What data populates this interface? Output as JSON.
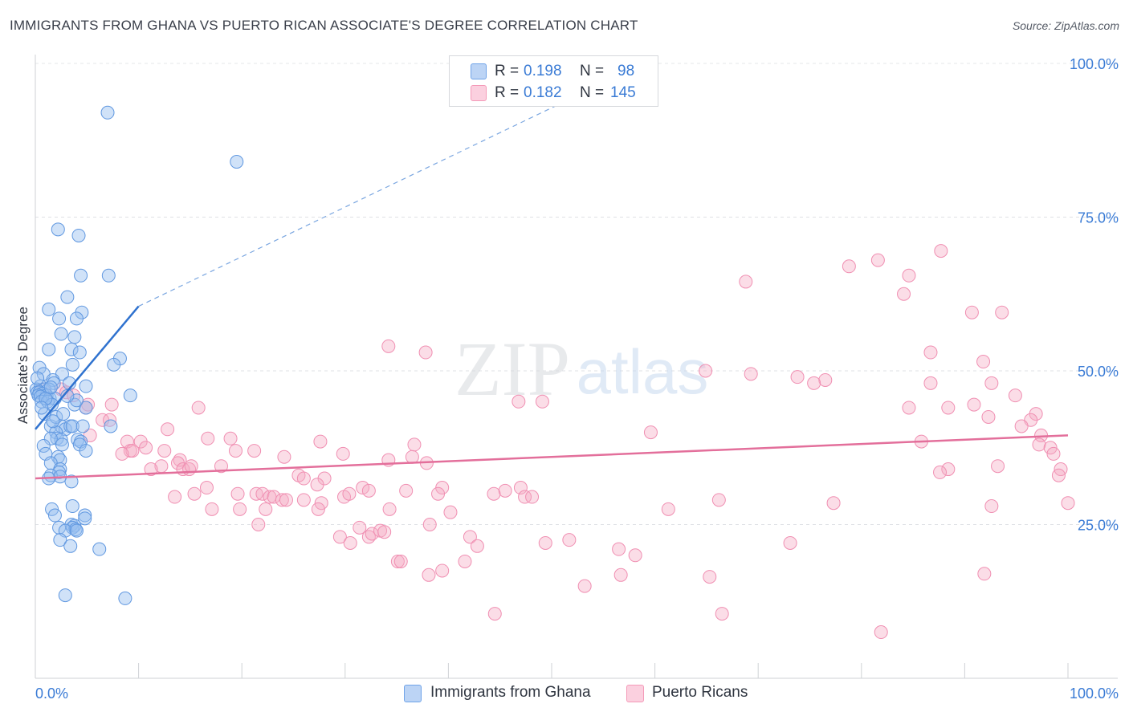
{
  "title": "IMMIGRANTS FROM GHANA VS PUERTO RICAN ASSOCIATE'S DEGREE CORRELATION CHART",
  "source": "Source: ZipAtlas.com",
  "watermark": {
    "zip": "ZIP",
    "atlas": "atlas"
  },
  "legend": {
    "r_label": "R =",
    "n_label": "N =",
    "series": [
      {
        "name": "Immigrants from Ghana",
        "r": "0.198",
        "n": "98",
        "color": "#6fa3e8"
      },
      {
        "name": "Puerto Ricans",
        "r": "0.182",
        "n": "145",
        "color": "#f49ab8"
      }
    ]
  },
  "chart_data": {
    "type": "scatter",
    "title": "IMMIGRANTS FROM GHANA VS PUERTO RICAN ASSOCIATE'S DEGREE CORRELATION CHART",
    "xlabel": "",
    "ylabel": "Associate's Degree",
    "xlim": [
      0,
      100
    ],
    "ylim": [
      0,
      100
    ],
    "x_tick_labels": [
      "0.0%",
      "100.0%"
    ],
    "y_ticks": [
      25,
      50,
      75,
      100
    ],
    "y_tick_labels": [
      "25.0%",
      "50.0%",
      "75.0%",
      "100.0%"
    ],
    "grid": true,
    "series": [
      {
        "name": "Immigrants from Ghana",
        "color": "#6fa3e8",
        "line_color": "#2f72cf",
        "trend": {
          "x0": 0,
          "y0": 40.5,
          "x1": 10,
          "y1": 60.5,
          "dashed_to_x": 54,
          "dashed_to_y": 96
        },
        "points": [
          [
            7,
            92
          ],
          [
            19.5,
            84
          ],
          [
            2.2,
            73
          ],
          [
            4.2,
            72
          ],
          [
            4.4,
            65.5
          ],
          [
            7.1,
            65.5
          ],
          [
            3.1,
            62
          ],
          [
            1.3,
            60
          ],
          [
            4.5,
            59.5
          ],
          [
            4,
            58.5
          ],
          [
            2.3,
            58.5
          ],
          [
            2.5,
            56
          ],
          [
            3.8,
            55.5
          ],
          [
            1.3,
            53.5
          ],
          [
            3.5,
            53.5
          ],
          [
            4.3,
            53
          ],
          [
            8.2,
            52
          ],
          [
            7.6,
            51
          ],
          [
            3.6,
            51
          ],
          [
            0.4,
            50.5
          ],
          [
            0.8,
            49.5
          ],
          [
            2.6,
            49.5
          ],
          [
            1.7,
            48.5
          ],
          [
            1.8,
            48
          ],
          [
            3.3,
            48
          ],
          [
            4.9,
            47.5
          ],
          [
            0.5,
            47.5
          ],
          [
            0.9,
            47
          ],
          [
            1.3,
            47
          ],
          [
            0.1,
            47
          ],
          [
            0.2,
            46.5
          ],
          [
            0.4,
            46.5
          ],
          [
            0.7,
            46.3
          ],
          [
            1.1,
            46
          ],
          [
            0.3,
            46
          ],
          [
            0.5,
            45.8
          ],
          [
            1.4,
            45.5
          ],
          [
            1.9,
            45.5
          ],
          [
            9.2,
            46
          ],
          [
            0.6,
            45
          ],
          [
            1.2,
            45
          ],
          [
            1.6,
            44.5
          ],
          [
            3.8,
            44.5
          ],
          [
            4.9,
            44
          ],
          [
            0.9,
            43
          ],
          [
            1.5,
            41
          ],
          [
            2.5,
            41
          ],
          [
            2.9,
            40.5
          ],
          [
            3.4,
            41
          ],
          [
            3.6,
            41
          ],
          [
            4.6,
            41
          ],
          [
            7.3,
            41
          ],
          [
            2,
            40
          ],
          [
            2.1,
            39
          ],
          [
            2.5,
            38.8
          ],
          [
            1.5,
            39
          ],
          [
            4.1,
            38.8
          ],
          [
            4.4,
            38.5
          ],
          [
            4.3,
            38
          ],
          [
            2.6,
            38
          ],
          [
            0.8,
            37.8
          ],
          [
            4.9,
            37
          ],
          [
            1,
            36.5
          ],
          [
            2.2,
            36
          ],
          [
            2.4,
            35.5
          ],
          [
            1.5,
            35
          ],
          [
            2.4,
            34
          ],
          [
            2.3,
            33.5
          ],
          [
            1.5,
            33
          ],
          [
            2.4,
            32.8
          ],
          [
            1.3,
            32.5
          ],
          [
            3.5,
            32
          ],
          [
            1.6,
            27.5
          ],
          [
            3.6,
            28
          ],
          [
            1.9,
            26.5
          ],
          [
            4.8,
            26.5
          ],
          [
            4.8,
            26
          ],
          [
            3.5,
            25
          ],
          [
            3.8,
            24.8
          ],
          [
            2.3,
            24.5
          ],
          [
            3.6,
            24.5
          ],
          [
            3.9,
            24.2
          ],
          [
            2.9,
            24
          ],
          [
            4,
            24
          ],
          [
            2.4,
            22.5
          ],
          [
            3.4,
            21.5
          ],
          [
            6.2,
            21
          ],
          [
            2.9,
            13.5
          ],
          [
            8.7,
            13
          ],
          [
            1,
            45.5
          ],
          [
            1.5,
            47.3
          ],
          [
            0.2,
            48.8
          ],
          [
            2,
            42.5
          ],
          [
            1.7,
            41.8
          ],
          [
            0.6,
            44
          ],
          [
            2.7,
            43
          ],
          [
            4,
            45.2
          ],
          [
            3.1,
            45.9
          ]
        ]
      },
      {
        "name": "Puerto Ricans",
        "color": "#f49ab8",
        "line_color": "#e36f9b",
        "trend": {
          "x0": 0,
          "y0": 32.5,
          "x1": 100,
          "y1": 39.5
        },
        "points": [
          [
            87.7,
            69.5
          ],
          [
            81.6,
            68
          ],
          [
            78.8,
            67
          ],
          [
            84.6,
            65.5
          ],
          [
            68.8,
            64.5
          ],
          [
            84.1,
            62.5
          ],
          [
            93.6,
            59.5
          ],
          [
            90.7,
            59.5
          ],
          [
            34.2,
            54
          ],
          [
            37.8,
            53
          ],
          [
            86.7,
            53
          ],
          [
            91.8,
            51.5
          ],
          [
            64.9,
            50
          ],
          [
            69.3,
            49.5
          ],
          [
            73.8,
            49
          ],
          [
            76.5,
            48.5
          ],
          [
            75.4,
            48
          ],
          [
            86.7,
            48
          ],
          [
            92.6,
            48
          ],
          [
            0.8,
            47
          ],
          [
            2.5,
            47
          ],
          [
            3,
            46.5
          ],
          [
            3.7,
            46
          ],
          [
            94.9,
            46
          ],
          [
            46.8,
            45
          ],
          [
            49.1,
            45
          ],
          [
            84.6,
            44
          ],
          [
            90.9,
            44.5
          ],
          [
            88.4,
            44
          ],
          [
            5.1,
            44.5
          ],
          [
            7.4,
            44.5
          ],
          [
            4.9,
            44
          ],
          [
            15.8,
            44
          ],
          [
            92.3,
            42.5
          ],
          [
            96.9,
            43
          ],
          [
            6.5,
            42
          ],
          [
            7.2,
            42
          ],
          [
            96.4,
            42
          ],
          [
            95.5,
            41
          ],
          [
            12.8,
            40.5
          ],
          [
            59.6,
            40
          ],
          [
            5.3,
            39.5
          ],
          [
            97.4,
            39.5
          ],
          [
            16.7,
            39
          ],
          [
            18.9,
            39
          ],
          [
            8.9,
            38.5
          ],
          [
            10.2,
            38.5
          ],
          [
            27.6,
            38.5
          ],
          [
            36.7,
            38
          ],
          [
            85.8,
            38.5
          ],
          [
            97.2,
            38
          ],
          [
            98.3,
            37.5
          ],
          [
            10.7,
            37.5
          ],
          [
            9.2,
            37
          ],
          [
            9.4,
            37
          ],
          [
            12.5,
            37
          ],
          [
            8.4,
            36.5
          ],
          [
            19.4,
            37
          ],
          [
            21.2,
            37
          ],
          [
            29.8,
            36.5
          ],
          [
            24.1,
            36
          ],
          [
            34.2,
            35.5
          ],
          [
            98.6,
            36.5
          ],
          [
            37.9,
            35
          ],
          [
            14,
            35.5
          ],
          [
            13.8,
            35
          ],
          [
            12.2,
            34.5
          ],
          [
            11.2,
            34
          ],
          [
            14.3,
            34
          ],
          [
            14.9,
            34
          ],
          [
            15.1,
            34.5
          ],
          [
            18,
            34.5
          ],
          [
            99.3,
            34
          ],
          [
            93.2,
            34.5
          ],
          [
            88.4,
            34
          ],
          [
            87.6,
            33.5
          ],
          [
            99.1,
            33
          ],
          [
            25.5,
            33
          ],
          [
            26,
            32.5
          ],
          [
            28,
            32.5
          ],
          [
            27.3,
            31.5
          ],
          [
            31.7,
            31
          ],
          [
            32.3,
            30.5
          ],
          [
            16.6,
            31
          ],
          [
            39.4,
            31
          ],
          [
            45.5,
            30.5
          ],
          [
            47,
            31
          ],
          [
            47.4,
            29.5
          ],
          [
            48.1,
            29.5
          ],
          [
            35.9,
            30.5
          ],
          [
            13.5,
            29.5
          ],
          [
            15.4,
            30
          ],
          [
            19.6,
            30
          ],
          [
            21.4,
            30
          ],
          [
            22,
            30
          ],
          [
            22.7,
            29.5
          ],
          [
            23.1,
            29.5
          ],
          [
            23.9,
            29
          ],
          [
            24.3,
            29
          ],
          [
            26,
            29
          ],
          [
            27.7,
            28.5
          ],
          [
            29.9,
            29.5
          ],
          [
            30.4,
            30
          ],
          [
            39,
            30
          ],
          [
            44.4,
            30
          ],
          [
            66.2,
            29
          ],
          [
            92.6,
            28
          ],
          [
            77.3,
            28.5
          ],
          [
            100,
            28.5
          ],
          [
            22.3,
            27.5
          ],
          [
            17.1,
            27.5
          ],
          [
            19.8,
            27.5
          ],
          [
            27.4,
            27.5
          ],
          [
            34.3,
            27.5
          ],
          [
            40.2,
            27
          ],
          [
            61.3,
            27.5
          ],
          [
            21.6,
            25
          ],
          [
            38.2,
            25
          ],
          [
            31.4,
            24.5
          ],
          [
            32.3,
            23
          ],
          [
            32.6,
            23.5
          ],
          [
            33.4,
            24
          ],
          [
            33.8,
            23.8
          ],
          [
            29.5,
            23
          ],
          [
            42.1,
            23
          ],
          [
            30.5,
            22
          ],
          [
            51.7,
            22.5
          ],
          [
            49.4,
            22
          ],
          [
            73.1,
            22
          ],
          [
            42.8,
            21.5
          ],
          [
            56.5,
            21
          ],
          [
            58.1,
            20
          ],
          [
            41.6,
            19
          ],
          [
            35.1,
            19
          ],
          [
            35.4,
            19
          ],
          [
            39.4,
            17.5
          ],
          [
            38.1,
            16.8
          ],
          [
            56.7,
            16.8
          ],
          [
            65.3,
            16.5
          ],
          [
            91.9,
            17
          ],
          [
            53.2,
            15
          ],
          [
            44.5,
            10.5
          ],
          [
            66.5,
            10.5
          ],
          [
            81.9,
            7.5
          ],
          [
            36.5,
            36
          ]
        ]
      }
    ]
  }
}
